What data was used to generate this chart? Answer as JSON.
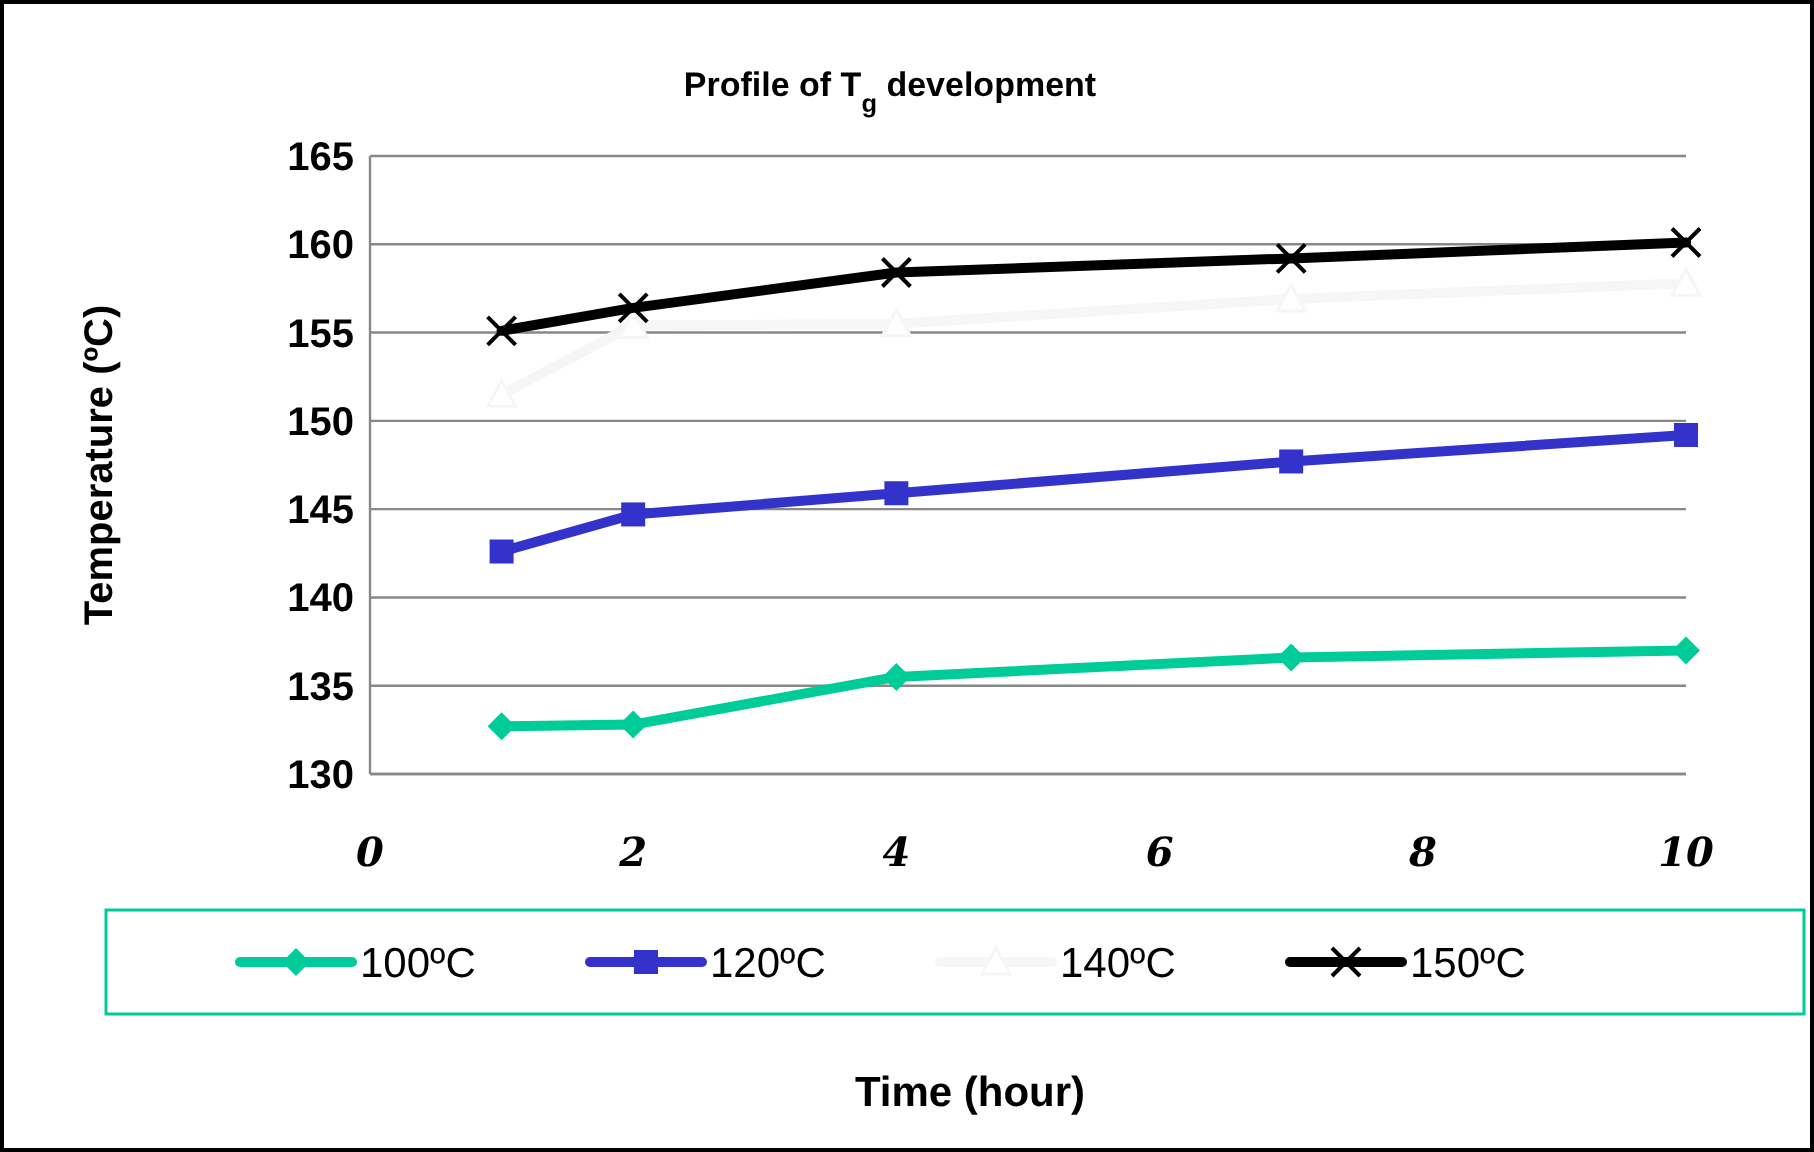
{
  "chart_data": {
    "type": "line",
    "title": "Profile of T$_{g}$ development",
    "xlabel": "Time (hour)",
    "ylabel": "Temperature (ºC)",
    "x": [
      1,
      2,
      4,
      7,
      10
    ],
    "series": [
      {
        "name": "100ºC",
        "color": "#00cc99",
        "marker": "diamond",
        "values": [
          132.7,
          132.8,
          135.5,
          136.6,
          137.0
        ]
      },
      {
        "name": "120ºC",
        "color": "#3333cc",
        "marker": "square",
        "values": [
          142.6,
          144.7,
          145.9,
          147.7,
          149.2
        ]
      },
      {
        "name": "140ºC",
        "color": "#f6f6f6",
        "marker": "triangle",
        "values": [
          151.5,
          155.4,
          155.5,
          156.9,
          157.8
        ]
      },
      {
        "name": "150ºC",
        "color": "#000000",
        "marker": "cross",
        "values": [
          155.1,
          156.4,
          158.4,
          159.2,
          160.1
        ]
      }
    ],
    "xlim": [
      0,
      10
    ],
    "xticks": [
      0,
      2,
      4,
      6,
      8,
      10
    ],
    "ylim": [
      130,
      165
    ],
    "yticks": [
      130,
      135,
      140,
      145,
      150,
      155,
      160,
      165
    ],
    "grid": "y",
    "legend": "bottom",
    "line_style": "solid"
  }
}
